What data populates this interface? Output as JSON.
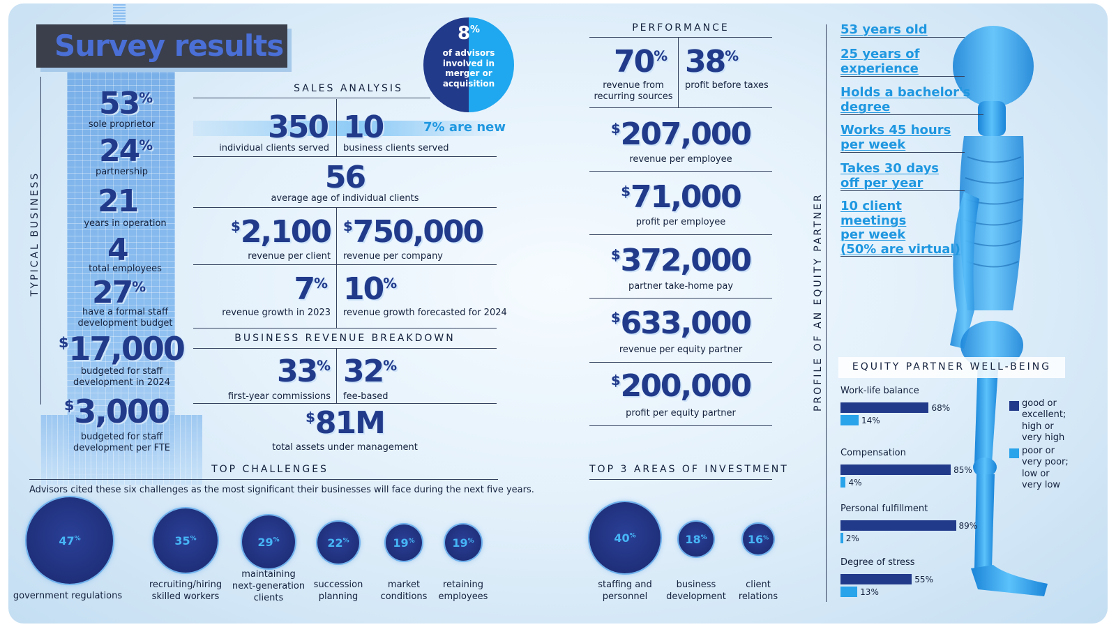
{
  "title": "Survey results",
  "typical_business": {
    "vertical_label": "TYPICAL BUSINESS",
    "stats": [
      {
        "value": "53",
        "suffix": "%",
        "label": "sole proprietor"
      },
      {
        "value": "24",
        "suffix": "%",
        "label": "partnership"
      },
      {
        "value": "21",
        "suffix": "",
        "label": "years in operation"
      },
      {
        "value": "4",
        "suffix": "",
        "label": "total employees"
      },
      {
        "value": "27",
        "suffix": "%",
        "label_l1": "have a formal staff",
        "label_l2": "development budget"
      },
      {
        "prefix": "$",
        "value": "17,000",
        "label_l1": "budgeted for staff",
        "label_l2": "development in 2024"
      },
      {
        "prefix": "$",
        "value": "3,000",
        "label_l1": "budgeted for staff",
        "label_l2": "development per FTE"
      }
    ]
  },
  "merger_badge": {
    "value": "8",
    "suffix": "%",
    "l1": "of advisors",
    "l2": "involved in",
    "l3": "merger or",
    "l4": "acquisition"
  },
  "sales_analysis": {
    "header": "SALES ANALYSIS",
    "individual_clients": {
      "value": "350",
      "label": "individual clients served"
    },
    "business_clients": {
      "value": "10",
      "label": "business clients served"
    },
    "new_note": "7% are new",
    "avg_age": {
      "value": "56",
      "label": "average age of individual clients"
    },
    "rev_per_client": {
      "prefix": "$",
      "value": "2,100",
      "label": "revenue per client"
    },
    "rev_per_company": {
      "prefix": "$",
      "value": "750,000",
      "label": "revenue per company"
    },
    "growth_2023": {
      "value": "7",
      "suffix": "%",
      "label": "revenue growth in 2023"
    },
    "growth_2024": {
      "value": "10",
      "suffix": "%",
      "label": "revenue growth forecasted for 2024"
    }
  },
  "revenue_breakdown": {
    "header": "BUSINESS REVENUE BREAKDOWN",
    "first_year": {
      "value": "33",
      "suffix": "%",
      "label": "first-year commissions"
    },
    "fee_based": {
      "value": "32",
      "suffix": "%",
      "label": "fee-based"
    },
    "aum": {
      "prefix": "$",
      "value": "81M",
      "label": "total assets under management"
    }
  },
  "performance": {
    "header": "PERFORMANCE",
    "recurring": {
      "value": "70",
      "suffix": "%",
      "l1": "revenue from",
      "l2": "recurring sources"
    },
    "profit_taxes": {
      "value": "38",
      "suffix": "%",
      "label": "profit before taxes"
    },
    "items": [
      {
        "prefix": "$",
        "value": "207,000",
        "label": "revenue per employee"
      },
      {
        "prefix": "$",
        "value": "71,000",
        "label": "profit per employee"
      },
      {
        "prefix": "$",
        "value": "372,000",
        "label": "partner take-home pay"
      },
      {
        "prefix": "$",
        "value": "633,000",
        "label": "revenue per equity partner"
      },
      {
        "prefix": "$",
        "value": "200,000",
        "label": "profit per equity partner"
      }
    ]
  },
  "profile": {
    "vertical_label": "PROFILE OF AN EQUITY PARTNER",
    "items": [
      {
        "l1": "53 years old"
      },
      {
        "l1": "25 years of",
        "l2": "experience"
      },
      {
        "l1": "Holds a bachelor's",
        "l2": "degree"
      },
      {
        "l1": "Works 45 hours",
        "l2": "per week"
      },
      {
        "l1": "Takes 30 days",
        "l2": "off per year"
      },
      {
        "l1": "10 client",
        "l2": "meetings",
        "l3": "per week",
        "l4": "(50% are virtual)"
      }
    ]
  },
  "top_challenges": {
    "header": "TOP CHALLENGES",
    "intro": "Advisors cited these six challenges as the most significant their businesses will face during the next five years.",
    "items": [
      {
        "value": "47",
        "suffix": "%",
        "l1": "government regulations"
      },
      {
        "value": "35",
        "suffix": "%",
        "l1": "recruiting/hiring",
        "l2": "skilled workers"
      },
      {
        "value": "29",
        "suffix": "%",
        "l1": "maintaining",
        "l2": "next-generation",
        "l3": "clients"
      },
      {
        "value": "22",
        "suffix": "%",
        "l1": "succession",
        "l2": "planning"
      },
      {
        "value": "19",
        "suffix": "%",
        "l1": "market",
        "l2": "conditions"
      },
      {
        "value": "19",
        "suffix": "%",
        "l1": "retaining",
        "l2": "employees"
      }
    ]
  },
  "top_investment": {
    "header": "TOP 3 AREAS OF INVESTMENT",
    "items": [
      {
        "value": "40",
        "suffix": "%",
        "l1": "staffing and",
        "l2": "personnel"
      },
      {
        "value": "18",
        "suffix": "%",
        "l1": "business",
        "l2": "development"
      },
      {
        "value": "16",
        "suffix": "%",
        "l1": "client",
        "l2": "relations"
      }
    ]
  },
  "wellbeing": {
    "header": "EQUITY PARTNER WELL-BEING",
    "legend_good": {
      "l1": "good or",
      "l2": "excellent;",
      "l3": "high or",
      "l4": "very high"
    },
    "legend_poor": {
      "l1": "poor or",
      "l2": "very poor;",
      "l3": "low or",
      "l4": "very low"
    },
    "colors": {
      "good": "#223a8a",
      "poor": "#29a3ea"
    }
  },
  "chart_data": {
    "type": "bar",
    "title": "EQUITY PARTNER WELL-BEING",
    "categories": [
      "Work-life balance",
      "Compensation",
      "Personal fulfillment",
      "Degree of stress"
    ],
    "series": [
      {
        "name": "good or excellent; high or very high",
        "values": [
          68,
          85,
          89,
          55
        ],
        "labels": [
          "68%",
          "85%",
          "89%",
          "55%"
        ]
      },
      {
        "name": "poor or very poor; low or very low",
        "values": [
          14,
          4,
          2,
          13
        ],
        "labels": [
          "14%",
          "4%",
          "2%",
          "13%"
        ]
      }
    ],
    "xlim": [
      0,
      100
    ]
  }
}
